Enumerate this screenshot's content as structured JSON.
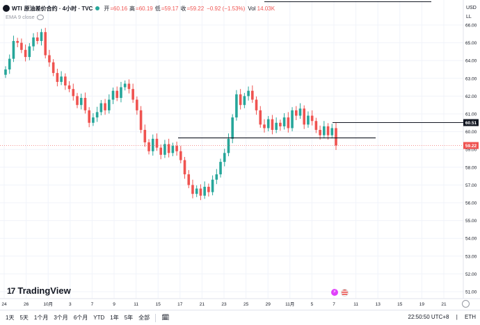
{
  "header": {
    "symbol": "WTI",
    "title": "原油差价合约 · 4小时 · TVC",
    "open_label": "开",
    "open": "=60.16",
    "high_label": "高",
    "high": "=60.19",
    "low_label": "低",
    "low": "=59.17",
    "close_label": "收",
    "close": "=59.22",
    "change": "−0.92 (−1.53%)",
    "vol_label": "Vol",
    "vol": "14.03K",
    "ema_label": "EMA 9 close"
  },
  "axis_unit": "USD",
  "axis_scale": "LL",
  "logo_text": "TradingView",
  "toolbar": {
    "ranges": [
      "1天",
      "5天",
      "1个月",
      "3个月",
      "6个月",
      "YTD",
      "1年",
      "5年",
      "全部"
    ],
    "time": "22:50:50 UTC+8",
    "session": "ETH"
  },
  "colors": {
    "up": "#26a69a",
    "down": "#ef5350",
    "text": "#131722",
    "grid": "#f0f3fa"
  },
  "icons": [
    "calendar-icon",
    "gear-icon",
    "flash-icon",
    "us-flag-icon"
  ],
  "chart_data": {
    "type": "candlestick",
    "y_ticks": [
      51.0,
      52.0,
      53.0,
      54.0,
      55.0,
      56.0,
      57.0,
      58.0,
      59.0,
      60.0,
      61.0,
      62.0,
      63.0,
      64.0,
      65.0,
      66.0
    ],
    "ylim": [
      50.5,
      66.3
    ],
    "x_tick_labels": [
      "24",
      "26",
      "10月",
      "3",
      "7",
      "9",
      "11",
      "15",
      "17",
      "21",
      "23",
      "25",
      "29",
      "11月",
      "5",
      "7",
      "11",
      "13",
      "15",
      "19",
      "21"
    ],
    "price_labels": [
      {
        "value": "60.51",
        "style": "dark"
      },
      {
        "value": "59.22",
        "style": "red"
      }
    ],
    "horizontal_lines": [
      {
        "price": 60.51,
        "from_date": "11-06"
      },
      {
        "price": 59.65,
        "from_date": "10-17",
        "to_date": "11-09"
      }
    ],
    "closes": [
      63.5,
      64.1,
      65.1,
      65.0,
      64.6,
      64.2,
      64.8,
      65.3,
      65.1,
      65.6,
      64.3,
      63.9,
      63.3,
      62.8,
      63.1,
      62.6,
      62.4,
      62.0,
      61.5,
      61.9,
      61.2,
      60.5,
      60.8,
      61.1,
      61.6,
      61.2,
      61.8,
      62.3,
      61.9,
      62.5,
      62.7,
      62.4,
      61.8,
      61.2,
      60.1,
      59.4,
      58.9,
      59.6,
      59.1,
      58.7,
      59.3,
      58.8,
      59.2,
      58.9,
      58.4,
      57.6,
      57.0,
      56.5,
      56.8,
      56.4,
      56.9,
      56.6,
      57.3,
      57.6,
      58.3,
      58.8,
      59.6,
      60.8,
      62.1,
      61.5,
      62.0,
      62.3,
      61.8,
      61.2,
      60.4,
      60.2,
      60.7,
      60.1,
      60.5,
      60.3,
      60.8,
      60.2,
      61.2,
      60.9,
      61.3,
      60.4,
      60.9,
      60.6,
      60.1,
      59.8,
      60.3,
      59.8,
      60.2,
      59.22
    ]
  }
}
